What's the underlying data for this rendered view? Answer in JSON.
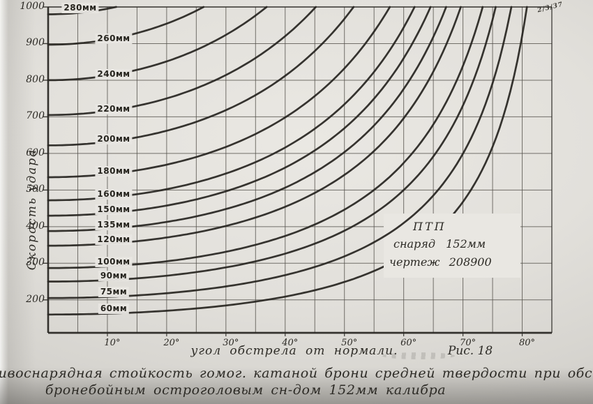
{
  "meta": {
    "date_note": "2/3/37"
  },
  "colors": {
    "paper": "#dedcd7",
    "plot_paper": "#e9e7e2",
    "ink": "#2b2925",
    "grid": "#55524c",
    "curve_ink": "#26241f"
  },
  "chart": {
    "y_title": "Скорость удара",
    "x_title": "угол обстрела от нормали.",
    "figure_label": "Рис. 18",
    "note_box": {
      "lines": [
        "ПТП",
        "снаряд 152мм",
        "чертеж 208900"
      ]
    },
    "y_ticks": [
      1000,
      900,
      800,
      700,
      600,
      500,
      400,
      300,
      200
    ],
    "x_ticks": {
      "labels": [
        "10°",
        "20°",
        "30°",
        "40°",
        "50°",
        "60°",
        "70°",
        "80°"
      ],
      "values": [
        10,
        20,
        30,
        40,
        50,
        60,
        70,
        80
      ]
    }
  },
  "caption": {
    "line1": "Противоснарядная стойкость гомог. катаной брони средней твердости при обстреле",
    "line2": "бронебойным остроголовым сн-дом 152мм калибра"
  },
  "chart_data": {
    "type": "line",
    "title": "Противоснарядная стойкость гомог. катаной брони средней твердости при обстреле бронебойным остроголовым сн-дом 152мм калибра",
    "xlabel": "угол обстрела от нормали (град)",
    "ylabel": "Скорость удара (м/с)",
    "xlim": [
      0,
      85
    ],
    "ylim": [
      110,
      1000
    ],
    "x_grid_step_deg": 5,
    "y_grid_step": 100,
    "grid": true,
    "legend_position": "labels-on-curves",
    "annotation": "ПТП, снаряд 152мм, чертеж 208900",
    "model": "v_required(angle) = v0 / cos(angle), clipped at v = 1000",
    "series": [
      {
        "name": "280мм",
        "v0": 980,
        "points_deg_mps": [
          [
            0,
            980
          ],
          [
            11.5,
            1000
          ]
        ]
      },
      {
        "name": "260мм",
        "v0": 897,
        "points_deg_mps": [
          [
            0,
            897
          ],
          [
            15,
            929
          ],
          [
            26.2,
            1000
          ]
        ]
      },
      {
        "name": "240мм",
        "v0": 800,
        "points_deg_mps": [
          [
            0,
            800
          ],
          [
            15,
            828
          ],
          [
            30,
            924
          ],
          [
            36.9,
            1000
          ]
        ]
      },
      {
        "name": "220мм",
        "v0": 705,
        "points_deg_mps": [
          [
            0,
            705
          ],
          [
            15,
            730
          ],
          [
            30,
            814
          ],
          [
            45.2,
            1000
          ]
        ]
      },
      {
        "name": "200мм",
        "v0": 622,
        "points_deg_mps": [
          [
            0,
            622
          ],
          [
            15,
            644
          ],
          [
            30,
            718
          ],
          [
            45,
            880
          ],
          [
            51.5,
            1000
          ]
        ]
      },
      {
        "name": "180мм",
        "v0": 535,
        "points_deg_mps": [
          [
            0,
            535
          ],
          [
            15,
            554
          ],
          [
            30,
            618
          ],
          [
            45,
            757
          ],
          [
            57.7,
            1000
          ]
        ]
      },
      {
        "name": "160мм",
        "v0": 472,
        "points_deg_mps": [
          [
            0,
            472
          ],
          [
            15,
            489
          ],
          [
            30,
            545
          ],
          [
            45,
            668
          ],
          [
            61.8,
            1000
          ]
        ]
      },
      {
        "name": "150мм",
        "v0": 430,
        "points_deg_mps": [
          [
            0,
            430
          ],
          [
            15,
            445
          ],
          [
            30,
            497
          ],
          [
            45,
            608
          ],
          [
            60,
            860
          ],
          [
            64.5,
            1000
          ]
        ]
      },
      {
        "name": "135мм",
        "v0": 388,
        "points_deg_mps": [
          [
            0,
            388
          ],
          [
            15,
            402
          ],
          [
            30,
            448
          ],
          [
            45,
            549
          ],
          [
            60,
            776
          ],
          [
            67.2,
            1000
          ]
        ]
      },
      {
        "name": "120мм",
        "v0": 348,
        "points_deg_mps": [
          [
            0,
            348
          ],
          [
            15,
            360
          ],
          [
            30,
            402
          ],
          [
            45,
            492
          ],
          [
            60,
            696
          ],
          [
            69.6,
            1000
          ]
        ]
      },
      {
        "name": "100мм",
        "v0": 287,
        "points_deg_mps": [
          [
            0,
            287
          ],
          [
            15,
            297
          ],
          [
            30,
            331
          ],
          [
            45,
            406
          ],
          [
            60,
            574
          ],
          [
            73.3,
            1000
          ]
        ]
      },
      {
        "name": "90мм",
        "v0": 250,
        "points_deg_mps": [
          [
            0,
            250
          ],
          [
            15,
            259
          ],
          [
            30,
            289
          ],
          [
            45,
            354
          ],
          [
            60,
            500
          ],
          [
            75.5,
            1000
          ]
        ]
      },
      {
        "name": "75мм",
        "v0": 205,
        "points_deg_mps": [
          [
            0,
            205
          ],
          [
            15,
            212
          ],
          [
            30,
            237
          ],
          [
            45,
            290
          ],
          [
            60,
            410
          ],
          [
            75,
            792
          ],
          [
            78.2,
            1000
          ]
        ]
      },
      {
        "name": "60мм",
        "v0": 160,
        "points_deg_mps": [
          [
            0,
            160
          ],
          [
            15,
            166
          ],
          [
            30,
            185
          ],
          [
            45,
            226
          ],
          [
            60,
            320
          ],
          [
            75,
            618
          ],
          [
            80.8,
            1000
          ]
        ]
      }
    ]
  }
}
